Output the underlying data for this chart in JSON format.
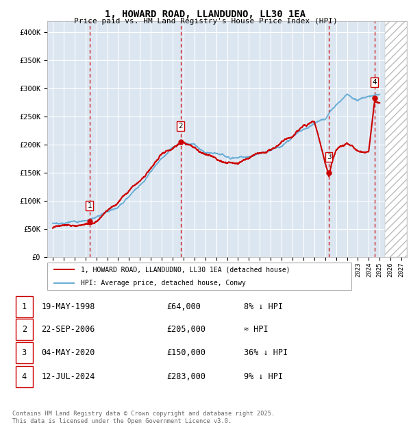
{
  "title": "1, HOWARD ROAD, LLANDUDNO, LL30 1EA",
  "subtitle": "Price paid vs. HM Land Registry's House Price Index (HPI)",
  "bg_color": "#dce6f1",
  "grid_color": "#ffffff",
  "sale_points": [
    {
      "num": 1,
      "date_dec": 1998.38,
      "price": 64000
    },
    {
      "num": 2,
      "date_dec": 2006.73,
      "price": 205000
    },
    {
      "num": 3,
      "date_dec": 2020.34,
      "price": 150000
    },
    {
      "num": 4,
      "date_dec": 2024.53,
      "price": 283000
    }
  ],
  "vline_dates": [
    1998.38,
    2006.73,
    2020.34,
    2024.53
  ],
  "xlim": [
    1994.5,
    2027.5
  ],
  "ylim": [
    0,
    420000
  ],
  "yticks": [
    0,
    50000,
    100000,
    150000,
    200000,
    250000,
    300000,
    350000,
    400000
  ],
  "xticks": [
    1995,
    1996,
    1997,
    1998,
    1999,
    2000,
    2001,
    2002,
    2003,
    2004,
    2005,
    2006,
    2007,
    2008,
    2009,
    2010,
    2011,
    2012,
    2013,
    2014,
    2015,
    2016,
    2017,
    2018,
    2019,
    2020,
    2021,
    2022,
    2023,
    2024,
    2025,
    2026,
    2027
  ],
  "legend_red": "1, HOWARD ROAD, LLANDUDNO, LL30 1EA (detached house)",
  "legend_blue": "HPI: Average price, detached house, Conwy",
  "table_rows": [
    {
      "num": 1,
      "date": "19-MAY-1998",
      "price": "£64,000",
      "hpi": "8% ↓ HPI"
    },
    {
      "num": 2,
      "date": "22-SEP-2006",
      "price": "£205,000",
      "hpi": "≈ HPI"
    },
    {
      "num": 3,
      "date": "04-MAY-2020",
      "price": "£150,000",
      "hpi": "36% ↓ HPI"
    },
    {
      "num": 4,
      "date": "12-JUL-2024",
      "price": "£283,000",
      "hpi": "9% ↓ HPI"
    }
  ],
  "footer": "Contains HM Land Registry data © Crown copyright and database right 2025.\nThis data is licensed under the Open Government Licence v3.0.",
  "hpi_color": "#6baed6",
  "price_color": "#cc0000",
  "future_start": 2025.5,
  "hpi_anchors_x": [
    1995,
    1997,
    1998,
    1999,
    2001,
    2003,
    2005,
    2006,
    2007,
    2008,
    2009,
    2010,
    2011,
    2012,
    2013,
    2014,
    2015,
    2016,
    2017,
    2018,
    2019,
    2020,
    2021,
    2022,
    2023,
    2024,
    2025
  ],
  "hpi_anchors_y": [
    60000,
    63000,
    67000,
    73000,
    95000,
    140000,
    185000,
    208000,
    218000,
    215000,
    200000,
    193000,
    188000,
    187000,
    190000,
    193000,
    200000,
    210000,
    222000,
    238000,
    248000,
    258000,
    285000,
    308000,
    298000,
    308000,
    312000
  ],
  "price_anchors_x": [
    1995,
    1996,
    1997,
    1998.38,
    1999,
    2001,
    2003,
    2005,
    2006.73,
    2007,
    2008,
    2009,
    2010,
    2011,
    2012,
    2013,
    2014,
    2015,
    2016,
    2017,
    2018,
    2019,
    2020.34,
    2020.6,
    2021,
    2022,
    2022.5,
    2023,
    2024,
    2024.53
  ],
  "price_anchors_y": [
    52000,
    54000,
    57000,
    64000,
    70000,
    100000,
    145000,
    190000,
    205000,
    205000,
    200000,
    190000,
    183000,
    180000,
    178000,
    182000,
    188000,
    195000,
    205000,
    218000,
    238000,
    248000,
    150000,
    170000,
    195000,
    210000,
    205000,
    195000,
    195000,
    283000
  ]
}
